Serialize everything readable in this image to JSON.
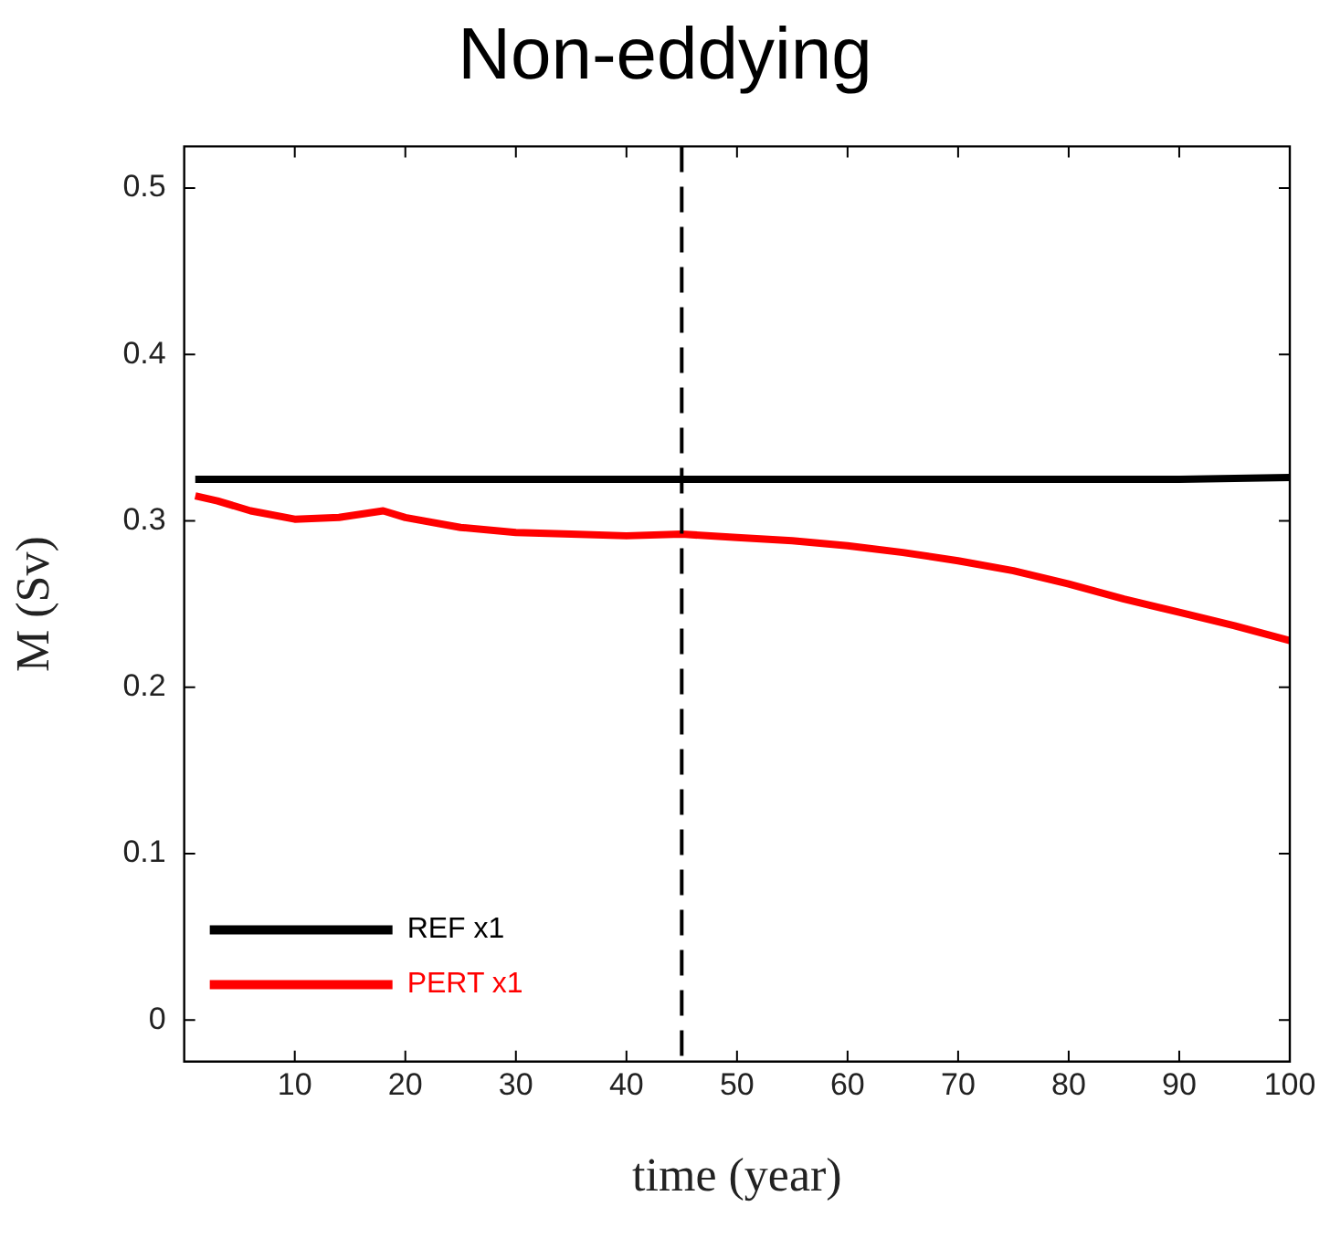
{
  "chart_data": {
    "type": "line",
    "title": "Non-eddying",
    "xlabel": "time (year)",
    "ylabel": "M (Sv)",
    "xlim": [
      0,
      100
    ],
    "xticks": [
      10,
      20,
      30,
      40,
      50,
      60,
      70,
      80,
      90,
      100
    ],
    "ylim": [
      -0.025,
      0.525
    ],
    "yticks": [
      0,
      0.1,
      0.2,
      0.3,
      0.4,
      0.5
    ],
    "grid": false,
    "legend": "bottom left",
    "marker": "none",
    "line_style": "solid",
    "ref_lines": [
      {
        "axis": "x",
        "value": 45,
        "color": "#000000",
        "line_style": "dashed"
      }
    ],
    "series": [
      {
        "name": "REF x1",
        "color": "#000000",
        "x": [
          1,
          10,
          20,
          30,
          40,
          50,
          60,
          70,
          80,
          90,
          100
        ],
        "values": [
          0.325,
          0.325,
          0.325,
          0.325,
          0.325,
          0.325,
          0.325,
          0.325,
          0.325,
          0.325,
          0.326
        ]
      },
      {
        "name": "PERT x1",
        "color": "#ff0000",
        "x": [
          1,
          3,
          6,
          10,
          14,
          18,
          20,
          25,
          30,
          35,
          40,
          45,
          50,
          55,
          60,
          65,
          70,
          75,
          80,
          85,
          90,
          95,
          100
        ],
        "values": [
          0.315,
          0.312,
          0.306,
          0.301,
          0.302,
          0.306,
          0.302,
          0.296,
          0.293,
          0.292,
          0.291,
          0.292,
          0.29,
          0.288,
          0.285,
          0.281,
          0.276,
          0.27,
          0.262,
          0.253,
          0.245,
          0.237,
          0.228
        ]
      }
    ]
  }
}
